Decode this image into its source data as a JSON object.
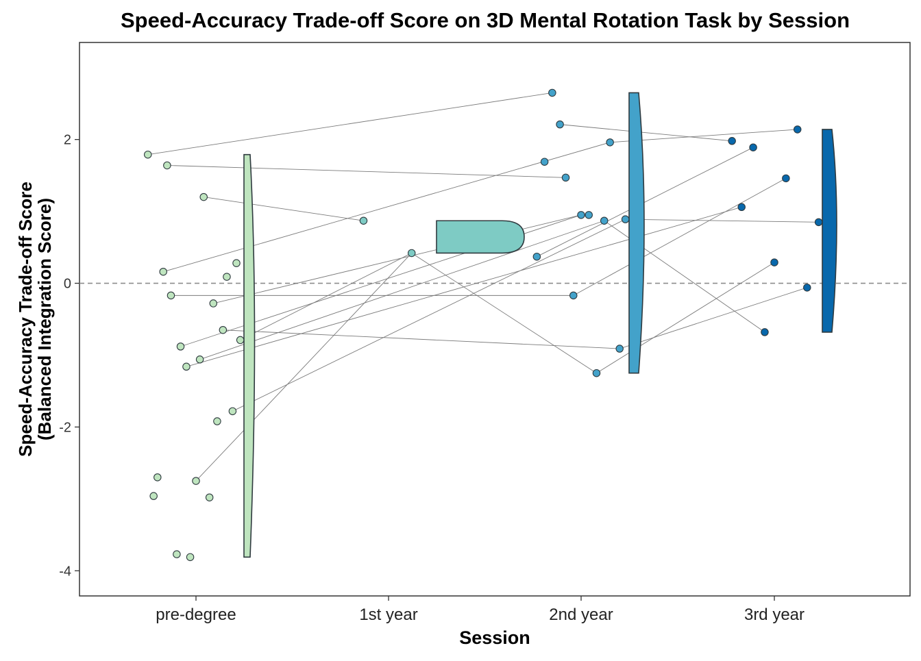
{
  "chart_data": {
    "type": "scatter",
    "title": "Speed-Accuracy Trade-off Score on 3D Mental Rotation Task by Session",
    "xlabel": "Session",
    "ylabel_line1": "Speed-Accuracy Trade-off Score",
    "ylabel_line2": "(Balanced Integration Score)",
    "categories": [
      "pre-degree",
      "1st year",
      "2nd year",
      "3rd year"
    ],
    "ylim": [
      -4.35,
      3.35
    ],
    "yticks": [
      -4,
      -2,
      0,
      2
    ],
    "reference_line": 0,
    "colors": [
      "#bfe5bf",
      "#7ecbc4",
      "#43a2ca",
      "#0868ac"
    ],
    "series": [
      {
        "category": "pre-degree",
        "points": [
          {
            "jitter": -0.25,
            "y": 1.79
          },
          {
            "jitter": -0.15,
            "y": 1.64
          },
          {
            "jitter": 0.04,
            "y": 1.2
          },
          {
            "jitter": 0.21,
            "y": 0.28
          },
          {
            "jitter": -0.17,
            "y": 0.16
          },
          {
            "jitter": 0.16,
            "y": 0.09
          },
          {
            "jitter": -0.13,
            "y": -0.17
          },
          {
            "jitter": 0.09,
            "y": -0.28
          },
          {
            "jitter": 0.14,
            "y": -0.65
          },
          {
            "jitter": 0.23,
            "y": -0.79
          },
          {
            "jitter": -0.08,
            "y": -0.88
          },
          {
            "jitter": 0.02,
            "y": -1.06
          },
          {
            "jitter": -0.05,
            "y": -1.16
          },
          {
            "jitter": 0.19,
            "y": -1.78
          },
          {
            "jitter": 0.11,
            "y": -1.92
          },
          {
            "jitter": -0.2,
            "y": -2.7
          },
          {
            "jitter": 0.0,
            "y": -2.75
          },
          {
            "jitter": -0.22,
            "y": -2.96
          },
          {
            "jitter": 0.07,
            "y": -2.98
          },
          {
            "jitter": -0.1,
            "y": -3.77
          },
          {
            "jitter": -0.03,
            "y": -3.81
          }
        ],
        "halfviolin": {
          "ymin": -3.81,
          "ymax": 1.79,
          "center": -0.6
        }
      },
      {
        "category": "1st year",
        "points": [
          {
            "jitter": -0.13,
            "y": 0.87
          },
          {
            "jitter": 0.12,
            "y": 0.42
          }
        ],
        "halfviolin": {
          "ymin": 0.42,
          "ymax": 0.87,
          "center": 0.645
        }
      },
      {
        "category": "2nd year",
        "points": [
          {
            "jitter": -0.15,
            "y": 2.65
          },
          {
            "jitter": -0.11,
            "y": 2.21
          },
          {
            "jitter": 0.15,
            "y": 1.96
          },
          {
            "jitter": -0.19,
            "y": 1.69
          },
          {
            "jitter": -0.08,
            "y": 1.47
          },
          {
            "jitter": 0.0,
            "y": 0.95
          },
          {
            "jitter": 0.04,
            "y": 0.95
          },
          {
            "jitter": 0.12,
            "y": 0.87
          },
          {
            "jitter": 0.23,
            "y": 0.89
          },
          {
            "jitter": -0.23,
            "y": 0.37
          },
          {
            "jitter": -0.04,
            "y": -0.17
          },
          {
            "jitter": 0.2,
            "y": -0.91
          },
          {
            "jitter": 0.08,
            "y": -1.25
          }
        ],
        "halfviolin": {
          "ymin": -1.25,
          "ymax": 2.65,
          "center": 0.9
        }
      },
      {
        "category": "3rd year",
        "points": [
          {
            "jitter": 0.12,
            "y": 2.14
          },
          {
            "jitter": -0.22,
            "y": 1.98
          },
          {
            "jitter": -0.11,
            "y": 1.89
          },
          {
            "jitter": 0.06,
            "y": 1.46
          },
          {
            "jitter": -0.17,
            "y": 1.06
          },
          {
            "jitter": 0.23,
            "y": 0.85
          },
          {
            "jitter": 0.0,
            "y": 0.29
          },
          {
            "jitter": 0.17,
            "y": -0.06
          },
          {
            "jitter": -0.05,
            "y": -0.68
          }
        ],
        "halfviolin": {
          "ymin": -0.68,
          "ymax": 2.14,
          "center": 0.9
        }
      }
    ],
    "connections": [
      {
        "from": [
          0,
          1.79
        ],
        "to": [
          2,
          2.65
        ]
      },
      {
        "from": [
          0,
          1.64
        ],
        "to": [
          2,
          1.47
        ]
      },
      {
        "from": [
          0,
          1.2
        ],
        "to": [
          1,
          0.87
        ]
      },
      {
        "from": [
          0,
          0.16
        ],
        "to": [
          2,
          1.96
        ]
      },
      {
        "from": [
          0,
          -0.17
        ],
        "to": [
          2,
          -0.17
        ]
      },
      {
        "from": [
          0,
          -0.28
        ],
        "to": [
          2,
          0.95
        ]
      },
      {
        "from": [
          0,
          -0.65
        ],
        "to": [
          2,
          -0.91
        ]
      },
      {
        "from": [
          0,
          -0.79
        ],
        "to": [
          1,
          0.42
        ]
      },
      {
        "from": [
          0,
          -0.88
        ],
        "to": [
          2,
          0.95
        ]
      },
      {
        "from": [
          0,
          -1.06
        ],
        "to": [
          2,
          0.87
        ]
      },
      {
        "from": [
          0,
          -1.16
        ],
        "to": [
          3,
          1.06
        ]
      },
      {
        "from": [
          0,
          -1.78
        ],
        "to": [
          2,
          0.89
        ]
      },
      {
        "from": [
          0,
          -2.75
        ],
        "to": [
          1,
          0.42
        ]
      },
      {
        "from": [
          1,
          0.42
        ],
        "to": [
          2,
          -1.25
        ]
      },
      {
        "from": [
          2,
          2.21
        ],
        "to": [
          3,
          1.98
        ]
      },
      {
        "from": [
          2,
          1.96
        ],
        "to": [
          3,
          2.14
        ]
      },
      {
        "from": [
          2,
          0.89
        ],
        "to": [
          3,
          0.85
        ]
      },
      {
        "from": [
          2,
          0.87
        ],
        "to": [
          3,
          -0.68
        ]
      },
      {
        "from": [
          2,
          -0.17
        ],
        "to": [
          3,
          1.46
        ]
      },
      {
        "from": [
          2,
          -0.91
        ],
        "to": [
          3,
          -0.06
        ]
      },
      {
        "from": [
          2,
          -1.25
        ],
        "to": [
          3,
          0.29
        ]
      },
      {
        "from": [
          2,
          0.37
        ],
        "to": [
          3,
          1.89
        ]
      }
    ]
  }
}
